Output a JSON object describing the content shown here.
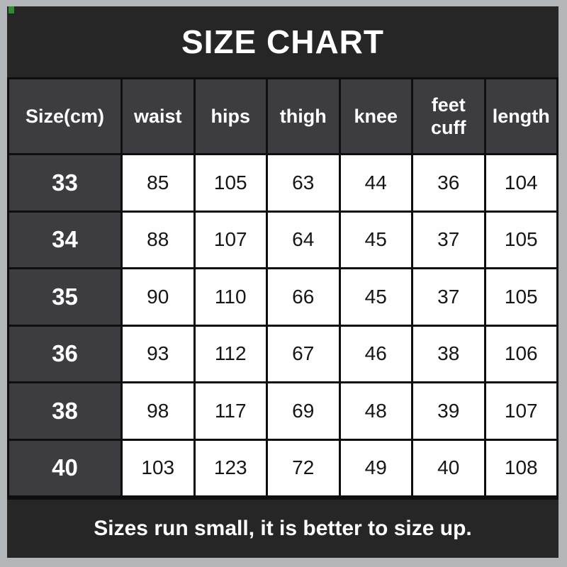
{
  "title": "SIZE CHART",
  "footer": {
    "note": "Sizes run small, it is better to size up."
  },
  "table": {
    "columns": [
      "Size(cm)",
      "waist",
      "hips",
      "thigh",
      "knee",
      "feet cuff",
      "length"
    ],
    "rows": [
      {
        "cells": [
          "33",
          "85",
          "105",
          "63",
          "44",
          "36",
          "104"
        ]
      },
      {
        "cells": [
          "34",
          "88",
          "107",
          "64",
          "45",
          "37",
          "105"
        ]
      },
      {
        "cells": [
          "35",
          "90",
          "110",
          "66",
          "45",
          "37",
          "105"
        ]
      },
      {
        "cells": [
          "36",
          "93",
          "112",
          "67",
          "46",
          "38",
          "106"
        ]
      },
      {
        "cells": [
          "38",
          "98",
          "117",
          "69",
          "48",
          "39",
          "107"
        ]
      },
      {
        "cells": [
          "40",
          "103",
          "123",
          "72",
          "49",
          "40",
          "108"
        ]
      }
    ]
  },
  "colors": {
    "frame_gray": "#b3b6b9",
    "band_dark": "#262626",
    "cell_dark_gray": "#3d3c40",
    "cell_white": "#fefefe",
    "grid_black": "#0e0e0e",
    "text_white": "#ffffff",
    "text_black": "#161616",
    "corner_mark_green": "#2f8d2f"
  },
  "chart_data": {
    "type": "table",
    "title": "SIZE CHART",
    "columns": [
      "Size(cm)",
      "waist",
      "hips",
      "thigh",
      "knee",
      "feet cuff",
      "length"
    ],
    "rows": [
      [
        33,
        85,
        105,
        63,
        44,
        36,
        104
      ],
      [
        34,
        88,
        107,
        64,
        45,
        37,
        105
      ],
      [
        35,
        90,
        110,
        66,
        45,
        37,
        105
      ],
      [
        36,
        93,
        112,
        67,
        46,
        38,
        106
      ],
      [
        38,
        98,
        117,
        69,
        48,
        39,
        107
      ],
      [
        40,
        103,
        123,
        72,
        49,
        40,
        108
      ]
    ],
    "note": "Sizes run small, it is better to size up.",
    "units": "cm"
  }
}
